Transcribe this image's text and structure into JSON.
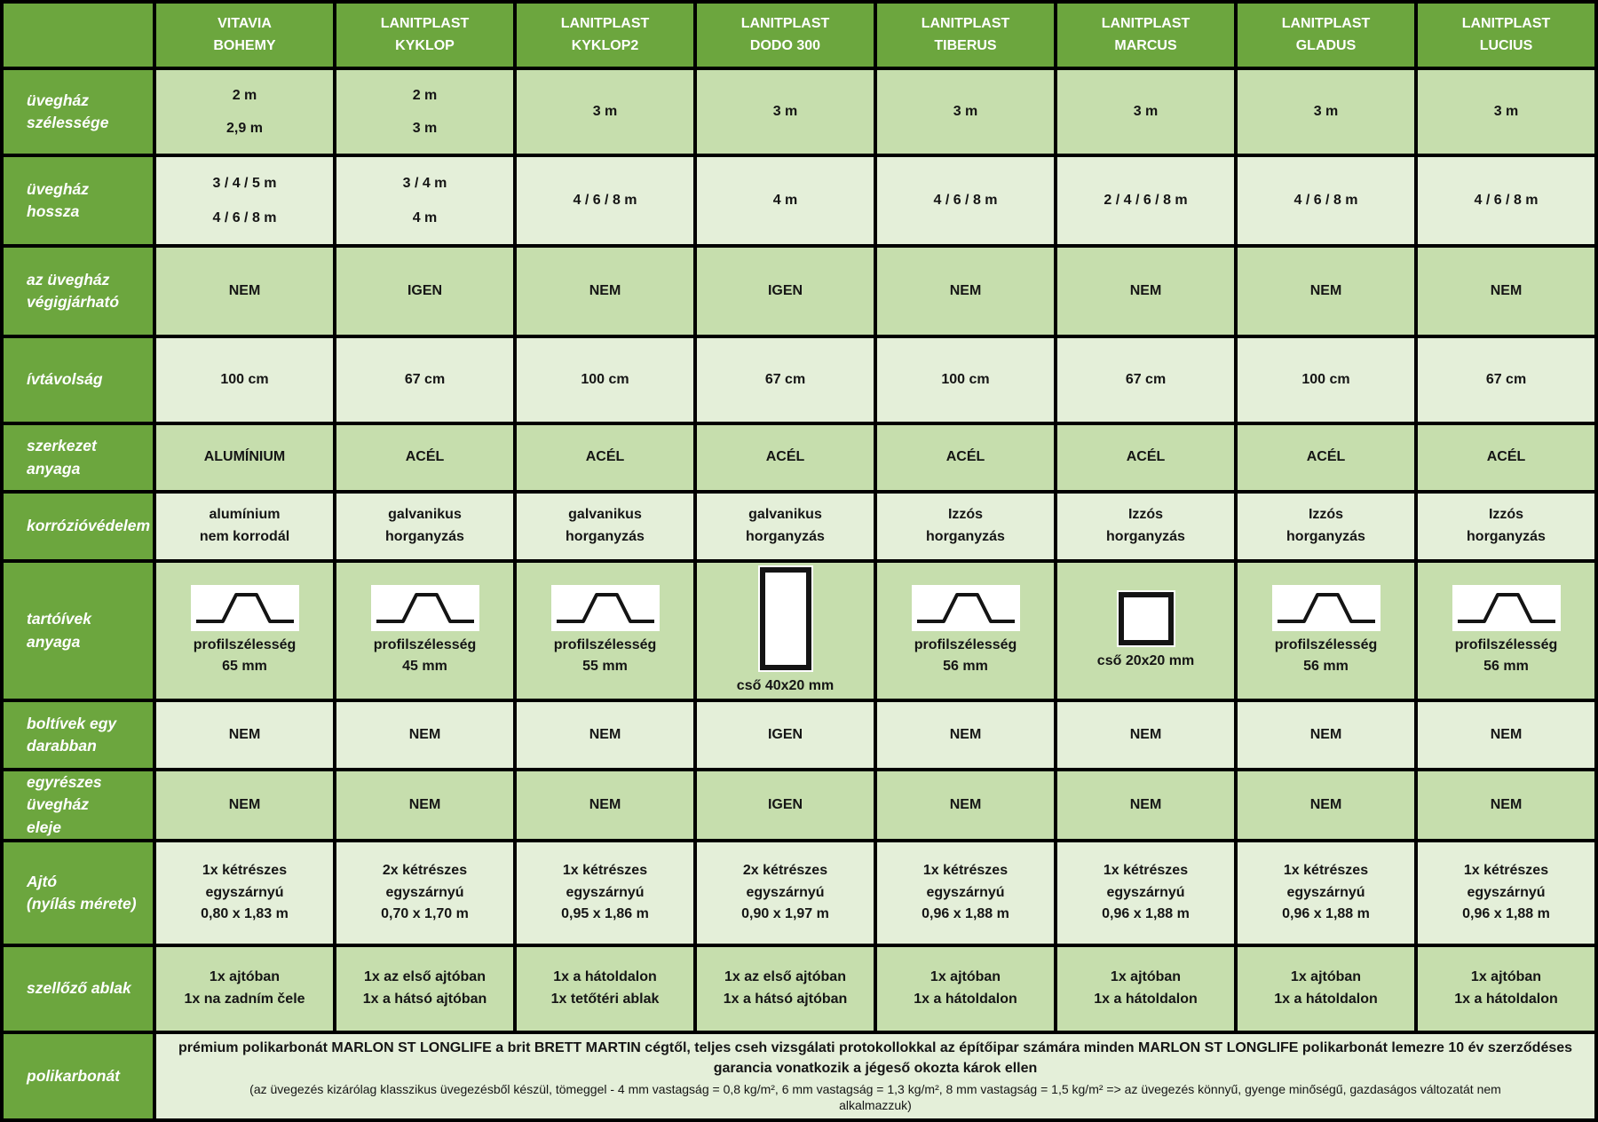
{
  "colors": {
    "header_green": "#6ca63e",
    "row_medium": "#c6dead",
    "row_pale": "#e4efd9",
    "border": "#000000",
    "text": "#151515"
  },
  "table": {
    "products": [
      {
        "name": [
          "VITAVIA",
          "BOHEMY"
        ]
      },
      {
        "name": [
          "LANITPLAST",
          "KYKLOP"
        ]
      },
      {
        "name": [
          "LANITPLAST",
          "KYKLOP2"
        ]
      },
      {
        "name": [
          "LANITPLAST",
          "DODO 300"
        ]
      },
      {
        "name": [
          "LANITPLAST",
          "TIBERUS"
        ]
      },
      {
        "name": [
          "LANITPLAST",
          "MARCUS"
        ]
      },
      {
        "name": [
          "LANITPLAST",
          "GLADUS"
        ]
      },
      {
        "name": [
          "LANITPLAST",
          "LUCIUS"
        ]
      }
    ],
    "rows": [
      {
        "label": [
          "üvegház szélessége"
        ],
        "kind": "spread",
        "cells": [
          [
            "2 m",
            "2,9 m"
          ],
          [
            "2 m",
            "3 m"
          ],
          [
            "3 m"
          ],
          [
            "3 m"
          ],
          [
            "3 m"
          ],
          [
            "3 m"
          ],
          [
            "3 m"
          ],
          [
            "3 m"
          ]
        ]
      },
      {
        "label": [
          "üvegház hossza"
        ],
        "kind": "spread",
        "cells": [
          [
            "3 / 4 / 5 m",
            "4 / 6 / 8 m"
          ],
          [
            "3 / 4 m",
            "4 m"
          ],
          [
            "4 / 6 / 8 m"
          ],
          [
            "4 m"
          ],
          [
            "4 / 6 / 8 m"
          ],
          [
            "2 / 4 / 6 / 8 m"
          ],
          [
            "4 / 6 / 8 m"
          ],
          [
            "4 / 6 / 8 m"
          ]
        ]
      },
      {
        "label": [
          "az üvegház",
          "végigjárható"
        ],
        "cells": [
          [
            "NEM"
          ],
          [
            "IGEN"
          ],
          [
            "NEM"
          ],
          [
            "IGEN"
          ],
          [
            "NEM"
          ],
          [
            "NEM"
          ],
          [
            "NEM"
          ],
          [
            "NEM"
          ]
        ]
      },
      {
        "label": [
          "ívtávolság"
        ],
        "cells": [
          [
            "100 cm"
          ],
          [
            "67 cm"
          ],
          [
            "100 cm"
          ],
          [
            "67 cm"
          ],
          [
            "100 cm"
          ],
          [
            "67 cm"
          ],
          [
            "100 cm"
          ],
          [
            "67 cm"
          ]
        ]
      },
      {
        "label": [
          "szerkezet anyaga"
        ],
        "cells": [
          [
            "ALUMÍNIUM"
          ],
          [
            "ACÉL"
          ],
          [
            "ACÉL"
          ],
          [
            "ACÉL"
          ],
          [
            "ACÉL"
          ],
          [
            "ACÉL"
          ],
          [
            "ACÉL"
          ],
          [
            "ACÉL"
          ]
        ]
      },
      {
        "label": [
          "korrózióvédelem"
        ],
        "cells": [
          [
            "alumínium",
            "nem korrodál"
          ],
          [
            "galvanikus",
            "horganyzás"
          ],
          [
            "galvanikus",
            "horganyzás"
          ],
          [
            "galvanikus",
            "horganyzás"
          ],
          [
            "Izzós",
            "horganyzás"
          ],
          [
            "Izzós",
            "horganyzás"
          ],
          [
            "Izzós",
            "horganyzás"
          ],
          [
            "Izzós",
            "horganyzás"
          ]
        ]
      },
      {
        "label": [
          "tartóívek anyaga"
        ],
        "kind": "icons",
        "cells": [
          {
            "icon": "profile-trapezoid",
            "lines": [
              "profilszélesség",
              "65 mm"
            ]
          },
          {
            "icon": "profile-trapezoid",
            "lines": [
              "profilszélesség",
              "45 mm"
            ]
          },
          {
            "icon": "profile-trapezoid",
            "lines": [
              "profilszélesség",
              "55 mm"
            ]
          },
          {
            "icon": "tube-rect",
            "lines": [
              "cső 40x20 mm"
            ]
          },
          {
            "icon": "profile-trapezoid",
            "lines": [
              "profilszélesség",
              "56 mm"
            ]
          },
          {
            "icon": "tube-square",
            "lines": [
              "cső 20x20 mm"
            ]
          },
          {
            "icon": "profile-trapezoid",
            "lines": [
              "profilszélesség",
              "56 mm"
            ]
          },
          {
            "icon": "profile-trapezoid",
            "lines": [
              "profilszélesség",
              "56 mm"
            ]
          }
        ]
      },
      {
        "label": [
          "boltívek egy",
          "darabban"
        ],
        "cells": [
          [
            "NEM"
          ],
          [
            "NEM"
          ],
          [
            "NEM"
          ],
          [
            "IGEN"
          ],
          [
            "NEM"
          ],
          [
            "NEM"
          ],
          [
            "NEM"
          ],
          [
            "NEM"
          ]
        ]
      },
      {
        "label": [
          "egyrészes üvegház",
          "eleje"
        ],
        "cells": [
          [
            "NEM"
          ],
          [
            "NEM"
          ],
          [
            "NEM"
          ],
          [
            "IGEN"
          ],
          [
            "NEM"
          ],
          [
            "NEM"
          ],
          [
            "NEM"
          ],
          [
            "NEM"
          ]
        ]
      },
      {
        "label": [
          "Ajtó",
          "(nyílás mérete)"
        ],
        "cells": [
          [
            "1x kétrészes",
            "egyszárnyú",
            "0,80 x 1,83 m"
          ],
          [
            "2x kétrészes",
            "egyszárnyú",
            "0,70 x 1,70 m"
          ],
          [
            "1x kétrészes",
            "egyszárnyú",
            "0,95 x 1,86 m"
          ],
          [
            "2x kétrészes",
            "egyszárnyú",
            "0,90 x 1,97 m"
          ],
          [
            "1x kétrészes",
            "egyszárnyú",
            "0,96 x 1,88 m"
          ],
          [
            "1x kétrészes",
            "egyszárnyú",
            "0,96 x 1,88 m"
          ],
          [
            "1x kétrészes",
            "egyszárnyú",
            "0,96 x 1,88 m"
          ],
          [
            "1x kétrészes",
            "egyszárnyú",
            "0,96 x 1,88 m"
          ]
        ]
      },
      {
        "label": [
          "szellőző ablak"
        ],
        "cells": [
          [
            "1x ajtóban",
            "1x na zadním čele"
          ],
          [
            "1x az első ajtóban",
            "1x a hátsó ajtóban"
          ],
          [
            "1x a hátoldalon",
            "1x tetőtéri ablak"
          ],
          [
            "1x az első ajtóban",
            "1x a hátsó ajtóban"
          ],
          [
            "1x ajtóban",
            "1x a hátoldalon"
          ],
          [
            "1x ajtóban",
            "1x a hátoldalon"
          ],
          [
            "1x ajtóban",
            "1x a hátoldalon"
          ],
          [
            "1x ajtóban",
            "1x a hátoldalon"
          ]
        ]
      },
      {
        "label": [
          "polikarbonát"
        ],
        "kind": "span",
        "bold_text": "prémium polikarbonát MARLON ST LONGLIFE a brit BRETT MARTIN cégtől, teljes cseh vizsgálati protokollokkal az építőipar számára minden MARLON ST LONGLIFE polikarbonát lemezre 10 év szerződéses garancia vonatkozik a jégeső okozta károk ellen",
        "normal_text": "(az üvegezés kizárólag klasszikus üvegezésből készül, tömeggel - 4 mm vastagság = 0,8 kg/m², 6 mm vastagság = 1,3 kg/m², 8 mm vastagság = 1,5 kg/m² => az üvegezés könnyű, gyenge minőségű, gazdaságos változatát nem alkalmazzuk)"
      }
    ]
  }
}
